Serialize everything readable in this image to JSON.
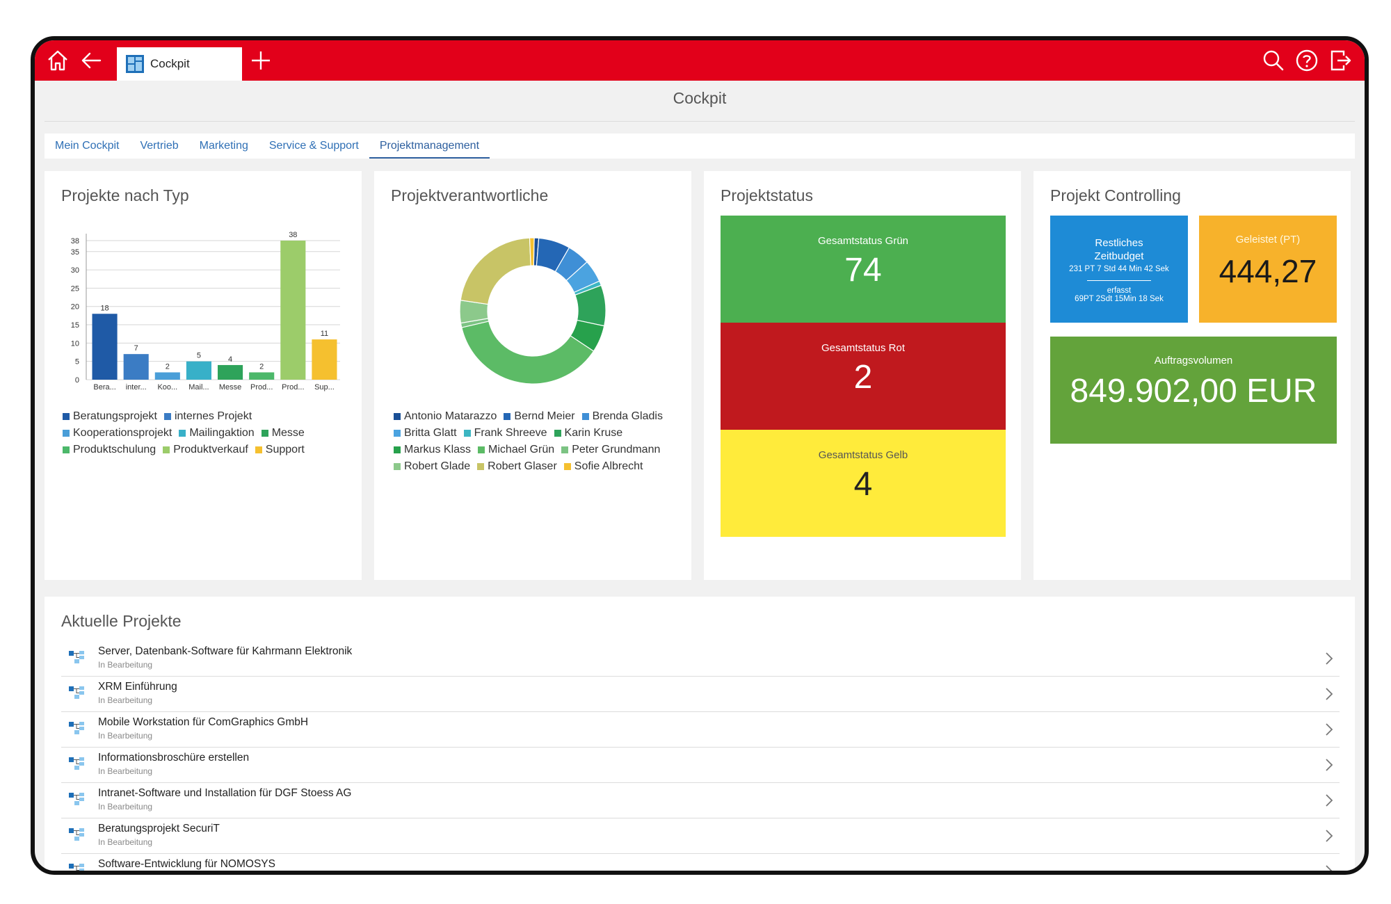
{
  "topbar": {
    "tab_label": "Cockpit"
  },
  "page_title": "Cockpit",
  "nav_tabs": [
    {
      "label": "Mein Cockpit"
    },
    {
      "label": "Vertrieb"
    },
    {
      "label": "Marketing"
    },
    {
      "label": "Service & Support"
    },
    {
      "label": "Projektmanagement"
    }
  ],
  "cards": {
    "typ": {
      "title": "Projekte nach Typ"
    },
    "verantwortliche": {
      "title": "Projektverantwortliche"
    },
    "status": {
      "title": "Projektstatus"
    },
    "controlling": {
      "title": "Projekt Controlling"
    }
  },
  "chart_data": [
    {
      "type": "bar",
      "title": "Projekte nach Typ",
      "categories": [
        "Bera...",
        "inter...",
        "Koo...",
        "Mail...",
        "Messe",
        "Prod...",
        "Prod...",
        "Sup..."
      ],
      "values": [
        18,
        7,
        2,
        5,
        4,
        2,
        38,
        11
      ],
      "colors": [
        "#1f5aa6",
        "#3b7cc4",
        "#4a9ed8",
        "#38b0c8",
        "#2ea35a",
        "#4cb86a",
        "#9ccc6a",
        "#f5c02f"
      ],
      "yticks": [
        0,
        5,
        10,
        15,
        20,
        25,
        30,
        35,
        38
      ],
      "ylim": [
        0,
        38
      ],
      "legend": [
        "Beratungsprojekt",
        "internes Projekt",
        "Kooperationsprojekt",
        "Mailingaktion",
        "Messe",
        "Produktschulung",
        "Produktverkauf",
        "Support"
      ]
    },
    {
      "type": "pie",
      "title": "Projektverantwortliche",
      "labels": [
        "Antonio Matarazzo",
        "Bernd Meier",
        "Brenda Gladis",
        "Britta Glatt",
        "Frank Shreeve",
        "Karin Kruse",
        "Markus Klass",
        "Michael Grün",
        "Peter Grundmann",
        "Robert Glade",
        "Robert Glaser",
        "Sofie Albrecht"
      ],
      "values": [
        1,
        7,
        5,
        5,
        1,
        9,
        6,
        37,
        1,
        5,
        22,
        1
      ],
      "colors": [
        "#1a4f96",
        "#2467b5",
        "#3f8fd6",
        "#4ba3e0",
        "#3cb6c2",
        "#2ea35a",
        "#27a14c",
        "#5cbb66",
        "#7cc383",
        "#8cc98b",
        "#c8c466",
        "#f5c02f"
      ]
    }
  ],
  "status": {
    "green": {
      "label": "Gesamtstatus Grün",
      "value": "74",
      "color": "#4caf50"
    },
    "red": {
      "label": "Gesamtstatus Rot",
      "value": "2",
      "color": "#c0191e"
    },
    "yellow": {
      "label": "Gesamtstatus Gelb",
      "value": "4",
      "color": "#ffeb3b"
    }
  },
  "controlling": {
    "budget": {
      "label1": "Restliches",
      "label2": "Zeitbudget",
      "value": "231 PT 7 Std 44 Min 42 Sek",
      "label3": "erfasst",
      "value2": "69PT 2Sdt 15Min 18 Sek",
      "color": "#1e8bd6"
    },
    "geleistet": {
      "label": "Geleistet (PT)",
      "value": "444,27",
      "color": "#f7b22b"
    },
    "auftrag": {
      "label": "Auftragsvolumen",
      "value": "849.902,00 EUR",
      "color": "#63a33b"
    }
  },
  "projects": {
    "title": "Aktuelle Projekte",
    "items": [
      {
        "name": "Server, Datenbank-Software für Kahrmann Elektronik",
        "status": "In Bearbeitung"
      },
      {
        "name": "XRM Einführung",
        "status": "In Bearbeitung"
      },
      {
        "name": "Mobile Workstation für ComGraphics GmbH",
        "status": "In Bearbeitung"
      },
      {
        "name": "Informationsbroschüre erstellen",
        "status": "In Bearbeitung"
      },
      {
        "name": "Intranet-Software und Installation für DGF Stoess AG",
        "status": "In Bearbeitung"
      },
      {
        "name": "Beratungsprojekt SecuriT",
        "status": "In Bearbeitung"
      },
      {
        "name": "Software-Entwicklung für NOMOSYS",
        "status": ""
      }
    ]
  }
}
